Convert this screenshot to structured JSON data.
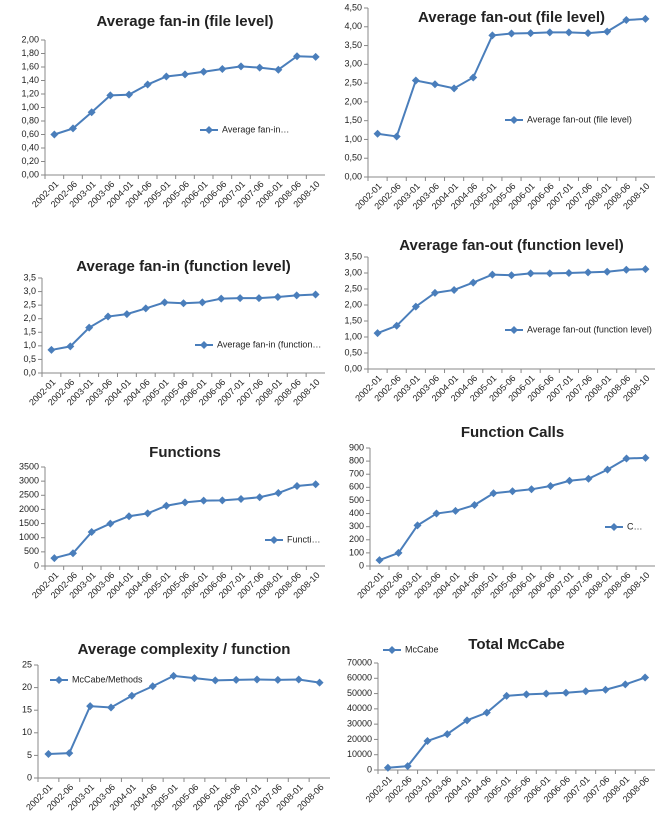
{
  "chart_data": [
    {
      "type": "line",
      "title": "Average fan-in (file level)",
      "categories": [
        "2002-01",
        "2002-06",
        "2003-01",
        "2003-06",
        "2004-01",
        "2004-06",
        "2005-01",
        "2005-06",
        "2006-01",
        "2006-06",
        "2007-01",
        "2007-06",
        "2008-01",
        "2008-06",
        "2008-10"
      ],
      "series": [
        {
          "name": "Average fan-in…",
          "color": "#4a7ebb",
          "values": [
            0.6,
            0.69,
            0.93,
            1.18,
            1.19,
            1.34,
            1.46,
            1.49,
            1.53,
            1.57,
            1.61,
            1.59,
            1.56,
            1.76,
            1.75
          ]
        }
      ],
      "ylim": [
        0,
        2
      ],
      "yticks": [
        {
          "value": 0,
          "label": "0,00"
        },
        {
          "value": 0.2,
          "label": "0,20"
        },
        {
          "value": 0.4,
          "label": "0,40"
        },
        {
          "value": 0.6,
          "label": "0,60"
        },
        {
          "value": 0.8,
          "label": "0,80"
        },
        {
          "value": 1,
          "label": "1,00"
        },
        {
          "value": 1.2,
          "label": "1,20"
        },
        {
          "value": 1.4,
          "label": "1,40"
        },
        {
          "value": 1.6,
          "label": "1,60"
        },
        {
          "value": 1.8,
          "label": "1,80"
        },
        {
          "value": 2,
          "label": "2,00"
        }
      ],
      "grid": false,
      "legend": "right"
    },
    {
      "type": "line",
      "title": "Average fan-out (file level)",
      "categories": [
        "2002-01",
        "2002-06",
        "2003-01",
        "2003-06",
        "2004-01",
        "2004-06",
        "2005-01",
        "2005-06",
        "2006-01",
        "2006-06",
        "2007-01",
        "2007-06",
        "2008-01",
        "2008-06",
        "2008-10"
      ],
      "series": [
        {
          "name": "Average fan-out (file level)",
          "color": "#4a7ebb",
          "values": [
            1.15,
            1.08,
            2.57,
            2.47,
            2.36,
            2.65,
            3.77,
            3.82,
            3.83,
            3.85,
            3.85,
            3.83,
            3.87,
            4.18,
            4.21
          ]
        }
      ],
      "ylim": [
        0,
        4.5
      ],
      "yticks": [
        {
          "value": 0,
          "label": "0,00"
        },
        {
          "value": 0.5,
          "label": "0,50"
        },
        {
          "value": 1,
          "label": "1,00"
        },
        {
          "value": 1.5,
          "label": "1,50"
        },
        {
          "value": 2,
          "label": "2,00"
        },
        {
          "value": 2.5,
          "label": "2,50"
        },
        {
          "value": 3,
          "label": "3,00"
        },
        {
          "value": 3.5,
          "label": "3,50"
        },
        {
          "value": 4,
          "label": "4,00"
        },
        {
          "value": 4.5,
          "label": "4,50"
        }
      ],
      "grid": false,
      "legend": "right"
    },
    {
      "type": "line",
      "title": "Average fan-in (function level)",
      "categories": [
        "2002-01",
        "2002-06",
        "2003-01",
        "2003-06",
        "2004-01",
        "2004-06",
        "2005-01",
        "2005-06",
        "2006-01",
        "2006-06",
        "2007-01",
        "2007-06",
        "2008-01",
        "2008-06",
        "2008-10"
      ],
      "series": [
        {
          "name": "Average fan-in (function…",
          "color": "#4a7ebb",
          "values": [
            0.85,
            0.98,
            1.67,
            2.08,
            2.17,
            2.38,
            2.6,
            2.57,
            2.6,
            2.74,
            2.76,
            2.76,
            2.8,
            2.86,
            2.89
          ]
        }
      ],
      "ylim": [
        0,
        3.5
      ],
      "yticks": [
        {
          "value": 0,
          "label": "0,0"
        },
        {
          "value": 0.5,
          "label": "0,5"
        },
        {
          "value": 1,
          "label": "1,0"
        },
        {
          "value": 1.5,
          "label": "1,5"
        },
        {
          "value": 2,
          "label": "2,0"
        },
        {
          "value": 2.5,
          "label": "2,5"
        },
        {
          "value": 3,
          "label": "3,0"
        },
        {
          "value": 3.5,
          "label": "3,5"
        }
      ],
      "grid": false,
      "legend": "right"
    },
    {
      "type": "line",
      "title": "Average fan-out (function level)",
      "categories": [
        "2002-01",
        "2002-06",
        "2003-01",
        "2003-06",
        "2004-01",
        "2004-06",
        "2005-01",
        "2005-06",
        "2006-01",
        "2006-06",
        "2007-01",
        "2007-06",
        "2008-01",
        "2008-06",
        "2008-10"
      ],
      "series": [
        {
          "name": "Average fan-out (function level)",
          "color": "#4a7ebb",
          "values": [
            1.12,
            1.35,
            1.95,
            2.38,
            2.47,
            2.7,
            2.95,
            2.93,
            2.99,
            2.99,
            3.0,
            3.02,
            3.04,
            3.1,
            3.12
          ]
        }
      ],
      "ylim": [
        0,
        3.5
      ],
      "yticks": [
        {
          "value": 0,
          "label": "0,00"
        },
        {
          "value": 0.5,
          "label": "0,50"
        },
        {
          "value": 1,
          "label": "1,00"
        },
        {
          "value": 1.5,
          "label": "1,50"
        },
        {
          "value": 2,
          "label": "2,00"
        },
        {
          "value": 2.5,
          "label": "2,50"
        },
        {
          "value": 3,
          "label": "3,00"
        },
        {
          "value": 3.5,
          "label": "3,50"
        }
      ],
      "grid": false,
      "legend": "right"
    },
    {
      "type": "line",
      "title": "Functions",
      "categories": [
        "2002-01",
        "2002-06",
        "2003-01",
        "2003-06",
        "2004-01",
        "2004-06",
        "2005-01",
        "2005-06",
        "2006-01",
        "2006-06",
        "2007-01",
        "2007-06",
        "2008-01",
        "2008-06",
        "2008-10"
      ],
      "series": [
        {
          "name": "Functi…",
          "color": "#4a7ebb",
          "values": [
            280,
            450,
            1200,
            1500,
            1760,
            1860,
            2130,
            2250,
            2310,
            2320,
            2370,
            2430,
            2580,
            2830,
            2890
          ]
        }
      ],
      "ylim": [
        0,
        3500
      ],
      "yticks": [
        0,
        500,
        1000,
        1500,
        2000,
        2500,
        3000,
        3500
      ],
      "grid": false,
      "legend": "right"
    },
    {
      "type": "line",
      "title": "Function Calls",
      "categories": [
        "2002-01",
        "2002-06",
        "2003-01",
        "2003-06",
        "2004-01",
        "2004-06",
        "2005-01",
        "2005-06",
        "2006-01",
        "2006-06",
        "2007-01",
        "2007-06",
        "2008-01",
        "2008-06",
        "2008-10"
      ],
      "series": [
        {
          "name": "C…",
          "color": "#4a7ebb",
          "values": [
            45,
            100,
            310,
            400,
            420,
            465,
            555,
            570,
            585,
            610,
            650,
            665,
            735,
            820,
            825
          ]
        }
      ],
      "ylim": [
        0,
        900
      ],
      "yticks": [
        0,
        100,
        200,
        300,
        400,
        500,
        600,
        700,
        800,
        900
      ],
      "grid": false,
      "legend": "right"
    },
    {
      "type": "line",
      "title": "Average complexity / function",
      "categories": [
        "2002-01",
        "2002-06",
        "2003-01",
        "2003-06",
        "2004-01",
        "2004-06",
        "2005-01",
        "2005-06",
        "2006-01",
        "2006-06",
        "2007-01",
        "2007-06",
        "2008-01",
        "2008-06"
      ],
      "series": [
        {
          "name": "McCabe/Methods",
          "color": "#4a7ebb",
          "values": [
            5.3,
            5.5,
            15.9,
            15.6,
            18.2,
            20.3,
            22.6,
            22.1,
            21.6,
            21.7,
            21.8,
            21.7,
            21.8,
            21.1
          ]
        }
      ],
      "ylim": [
        0,
        25
      ],
      "yticks": [
        0,
        5,
        10,
        15,
        20,
        25
      ],
      "grid": false,
      "legend": "top-left"
    },
    {
      "type": "line",
      "title": "Total McCabe",
      "categories": [
        "2002-01",
        "2002-06",
        "2003-01",
        "2003-06",
        "2004-01",
        "2004-06",
        "2005-01",
        "2005-06",
        "2006-01",
        "2006-06",
        "2007-01",
        "2007-06",
        "2008-01",
        "2008-06"
      ],
      "series": [
        {
          "name": "McCabe",
          "color": "#4a7ebb",
          "values": [
            1500,
            2500,
            19000,
            23500,
            32500,
            37500,
            48500,
            49500,
            50000,
            50500,
            51500,
            52500,
            56000,
            60500
          ]
        }
      ],
      "ylim": [
        0,
        70000
      ],
      "yticks": [
        0,
        10000,
        20000,
        30000,
        40000,
        50000,
        60000,
        70000
      ],
      "grid": false,
      "legend": "top-left"
    }
  ]
}
